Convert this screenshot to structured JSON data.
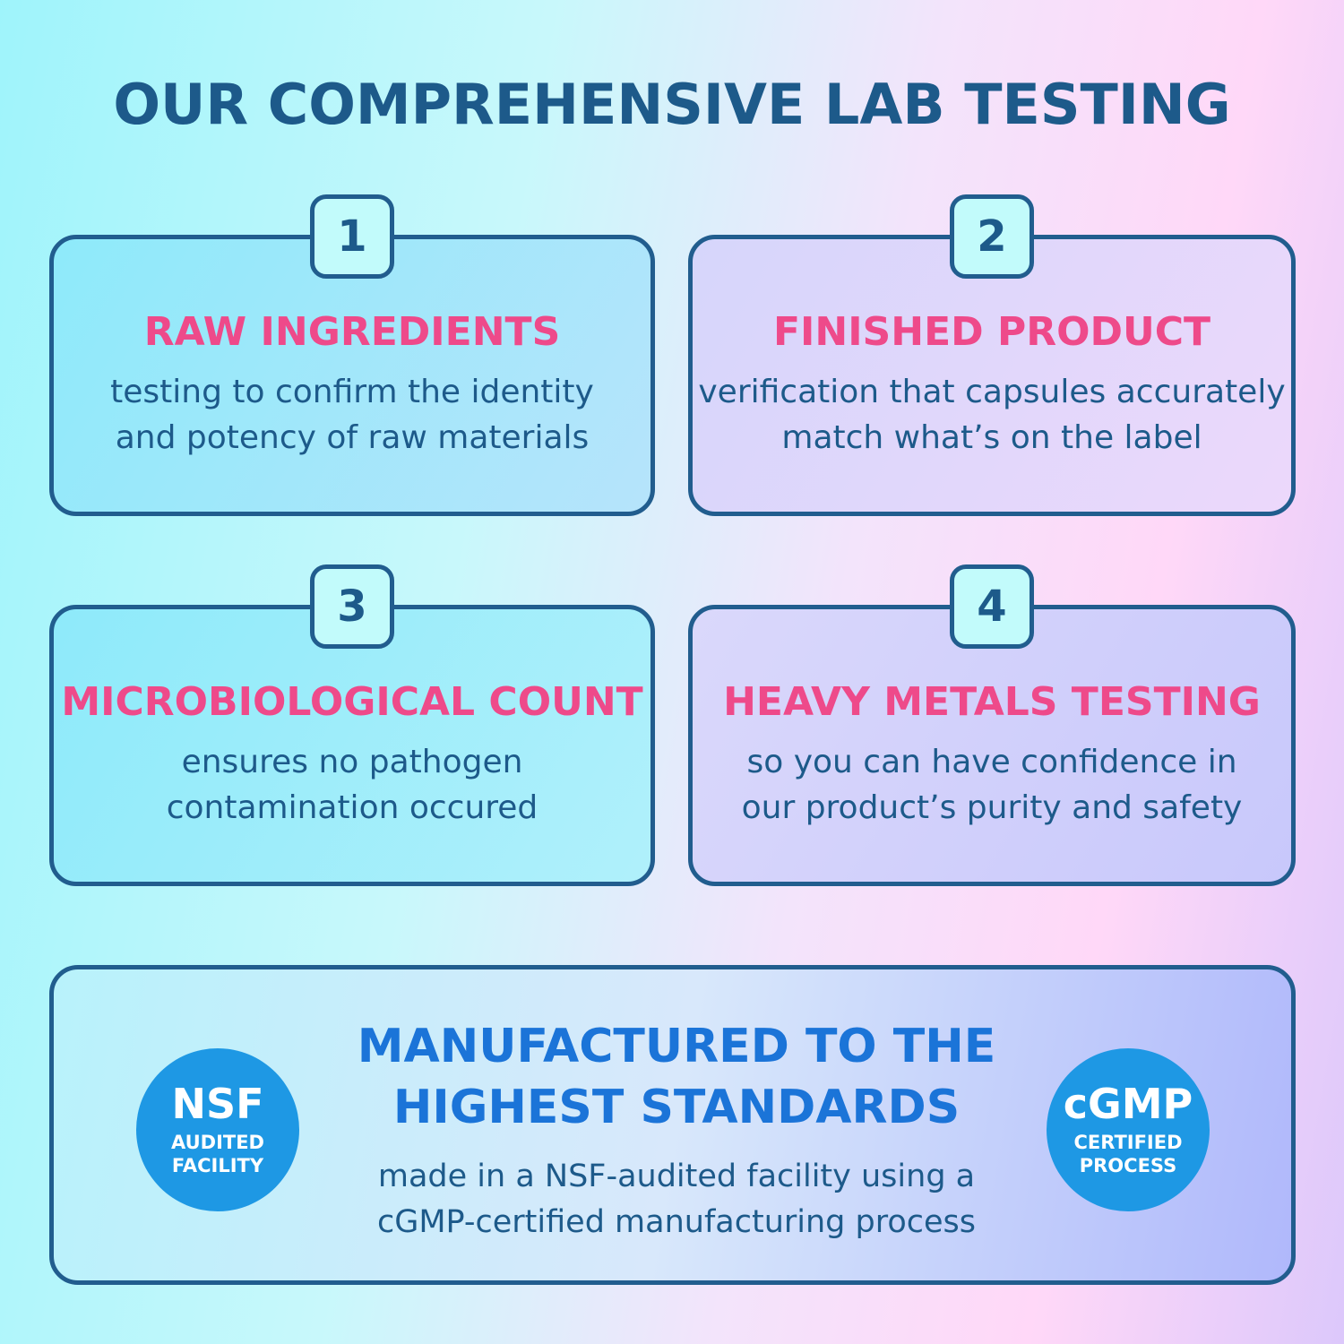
{
  "title": "OUR COMPREHENSIVE LAB TESTING",
  "cards": [
    {
      "number": "1",
      "heading": "RAW INGREDIENTS",
      "lines": [
        "testing to confirm the identity",
        "and potency of raw materials"
      ]
    },
    {
      "number": "2",
      "heading": "FINISHED PRODUCT",
      "lines": [
        "verification that capsules accurately",
        "match what’s on the label"
      ]
    },
    {
      "number": "3",
      "heading": "MICROBIOLOGICAL COUNT",
      "lines": [
        "ensures no pathogen",
        "contamination occured"
      ]
    },
    {
      "number": "4",
      "heading": "HEAVY METALS TESTING",
      "lines": [
        "so you can have confidence in",
        "our product’s purity and safety"
      ]
    }
  ],
  "bottom": {
    "heading_lines": [
      "MANUFACTURED TO THE",
      "HIGHEST STANDARDS"
    ],
    "lines": [
      "made in a NSF-audited facility using a",
      "cGMP-certified manufacturing process"
    ],
    "badge_left": {
      "big": "NSF",
      "small": [
        "AUDITED",
        "FACILITY"
      ]
    },
    "badge_right": {
      "big": "cGMP",
      "small": [
        "CERTIFIED",
        "PROCESS"
      ]
    }
  },
  "colors": {
    "border": "#215d8e",
    "heading_pink": "#ee4a8a",
    "heading_blue": "#1b74d8",
    "badge": "#1e98e4",
    "text": "#1d5a8a"
  }
}
